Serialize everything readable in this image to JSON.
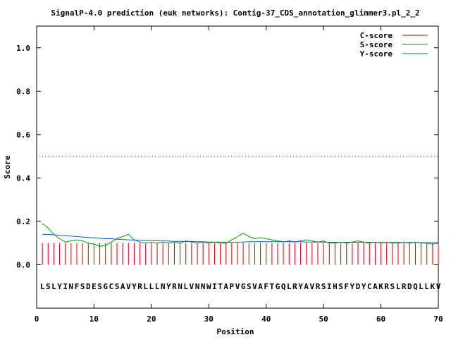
{
  "chart_data": {
    "type": "line",
    "title": "SignalP-4.0 prediction (euk networks): Contig-37_CDS_annotation_glimmer3.pl_2_2",
    "xlabel": "Position",
    "ylabel": "Score",
    "xlim": [
      0,
      70
    ],
    "ylim": [
      -0.2,
      1.1
    ],
    "xticks": [
      0,
      10,
      20,
      30,
      40,
      50,
      60,
      70
    ],
    "yticks": [
      0.0,
      0.2,
      0.4,
      0.6,
      0.8,
      1.0
    ],
    "xtick_labels": [
      "0",
      "10",
      "20",
      "30",
      "40",
      "50",
      "60",
      "70"
    ],
    "ytick_labels": [
      "0.0",
      "0.2",
      "0.4",
      "0.6",
      "0.8",
      "1.0"
    ],
    "threshold": 0.5,
    "legend_position": "top-right",
    "sequence": "LSLYINFSDESGCSAVYRLLLNYRNLVNNWITAPVGSVAFTGQLRYAVRSIHSFYDYCAKRSLRDQLLKV",
    "series": [
      {
        "name": "C-score",
        "color": "#cc0000",
        "style": "impulses",
        "x": [
          1,
          2,
          3,
          4,
          5,
          6,
          7,
          8,
          9,
          10,
          11,
          12,
          13,
          14,
          15,
          16,
          17,
          18,
          19,
          20,
          21,
          22,
          23,
          24,
          25,
          26,
          27,
          28,
          29,
          30,
          31,
          32,
          33,
          34,
          35,
          36,
          37,
          38,
          39,
          40,
          41,
          42,
          43,
          44,
          45,
          46,
          47,
          48,
          49,
          50,
          51,
          52,
          53,
          54,
          55,
          56,
          57,
          58,
          59,
          60,
          61,
          62,
          63,
          64,
          65,
          66,
          67,
          68,
          69,
          70
        ],
        "values": [
          0.1,
          0.1,
          0.1,
          0.1,
          0.1,
          0.1,
          0.1,
          0.1,
          0.1,
          0.1,
          0.1,
          0.1,
          0.1,
          0.1,
          0.1,
          0.1,
          0.1,
          0.1,
          0.1,
          0.1,
          0.1,
          0.1,
          0.1,
          0.1,
          0.1,
          0.1,
          0.1,
          0.1,
          0.1,
          0.1,
          0.1,
          0.1,
          0.1,
          0.1,
          0.1,
          0.1,
          0.1,
          0.1,
          0.1,
          0.1,
          0.1,
          0.1,
          0.1,
          0.1,
          0.1,
          0.1,
          0.1,
          0.1,
          0.1,
          0.1,
          0.1,
          0.1,
          0.1,
          0.1,
          0.1,
          0.1,
          0.1,
          0.1,
          0.1,
          0.1,
          0.1,
          0.1,
          0.1,
          0.1,
          0.1,
          0.1,
          0.1,
          0.1,
          0.1,
          0.1
        ]
      },
      {
        "name": "S-score",
        "color": "#00a000",
        "style": "line",
        "x": [
          1,
          2,
          3,
          4,
          5,
          6,
          7,
          8,
          9,
          10,
          11,
          12,
          13,
          14,
          15,
          16,
          17,
          18,
          19,
          20,
          21,
          22,
          23,
          24,
          25,
          26,
          27,
          28,
          29,
          30,
          31,
          32,
          33,
          34,
          35,
          36,
          37,
          38,
          39,
          40,
          41,
          42,
          43,
          44,
          45,
          46,
          47,
          48,
          49,
          50,
          51,
          52,
          53,
          54,
          55,
          56,
          57,
          58,
          59,
          60,
          61,
          62,
          63,
          64,
          65,
          66,
          67,
          68,
          69,
          70
        ],
        "values": [
          0.19,
          0.17,
          0.14,
          0.12,
          0.105,
          0.11,
          0.115,
          0.11,
          0.1,
          0.095,
          0.085,
          0.09,
          0.105,
          0.12,
          0.13,
          0.14,
          0.115,
          0.105,
          0.1,
          0.105,
          0.1,
          0.105,
          0.1,
          0.105,
          0.1,
          0.11,
          0.105,
          0.1,
          0.105,
          0.1,
          0.105,
          0.1,
          0.1,
          0.115,
          0.13,
          0.145,
          0.13,
          0.12,
          0.125,
          0.12,
          0.115,
          0.11,
          0.105,
          0.11,
          0.105,
          0.11,
          0.115,
          0.11,
          0.105,
          0.11,
          0.1,
          0.1,
          0.105,
          0.1,
          0.105,
          0.11,
          0.105,
          0.1,
          0.105,
          0.1,
          0.105,
          0.1,
          0.1,
          0.105,
          0.1,
          0.105,
          0.1,
          0.1,
          0.095,
          0.1
        ]
      },
      {
        "name": "Y-score",
        "color": "#0060c0",
        "style": "line",
        "x": [
          1,
          2,
          3,
          4,
          5,
          6,
          7,
          8,
          9,
          10,
          11,
          12,
          13,
          14,
          15,
          16,
          17,
          18,
          19,
          20,
          21,
          22,
          23,
          24,
          25,
          26,
          27,
          28,
          29,
          30,
          31,
          32,
          33,
          34,
          35,
          36,
          37,
          38,
          39,
          40,
          41,
          42,
          43,
          44,
          45,
          46,
          47,
          48,
          49,
          50,
          51,
          52,
          53,
          54,
          55,
          56,
          57,
          58,
          59,
          60,
          61,
          62,
          63,
          64,
          65,
          66,
          67,
          68,
          69,
          70
        ],
        "values": [
          0.14,
          0.14,
          0.138,
          0.136,
          0.134,
          0.132,
          0.13,
          0.128,
          0.126,
          0.124,
          0.122,
          0.12,
          0.12,
          0.118,
          0.116,
          0.115,
          0.114,
          0.113,
          0.112,
          0.111,
          0.11,
          0.11,
          0.109,
          0.108,
          0.108,
          0.107,
          0.107,
          0.106,
          0.106,
          0.105,
          0.105,
          0.105,
          0.104,
          0.104,
          0.104,
          0.105,
          0.106,
          0.106,
          0.106,
          0.106,
          0.106,
          0.106,
          0.106,
          0.106,
          0.106,
          0.106,
          0.105,
          0.105,
          0.105,
          0.105,
          0.104,
          0.104,
          0.104,
          0.104,
          0.104,
          0.104,
          0.104,
          0.104,
          0.103,
          0.103,
          0.103,
          0.103,
          0.103,
          0.103,
          0.103,
          0.103,
          0.102,
          0.102,
          0.102,
          0.102
        ]
      }
    ]
  }
}
